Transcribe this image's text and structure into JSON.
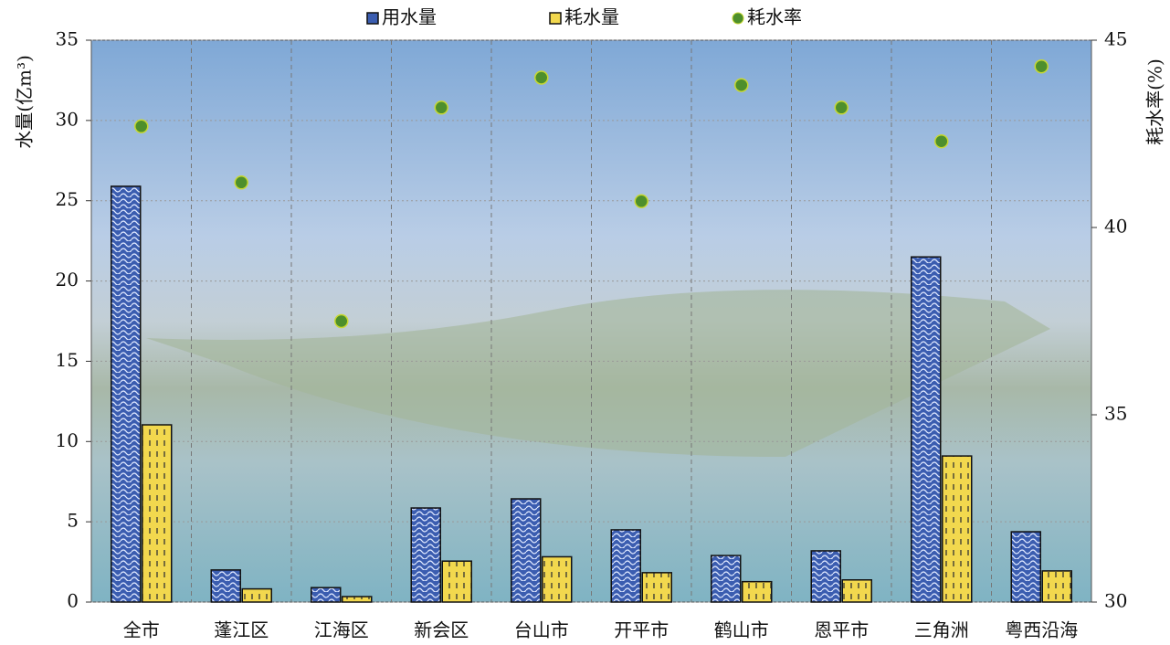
{
  "chart_data": {
    "type": "bar",
    "categories": [
      "全市",
      "蓬江区",
      "江海区",
      "新会区",
      "台山市",
      "开平市",
      "鹤山市",
      "恩平市",
      "三角洲",
      "粤西沿海"
    ],
    "series": [
      {
        "name": "用水量",
        "type": "bar",
        "color": "#3b5db0",
        "values": [
          25.9,
          2.0,
          0.9,
          5.86,
          6.43,
          4.5,
          2.9,
          3.19,
          21.5,
          4.38
        ]
      },
      {
        "name": "耗水量",
        "type": "bar",
        "color": "#f2d84e",
        "values": [
          11.04,
          0.82,
          0.34,
          2.55,
          2.82,
          1.83,
          1.27,
          1.38,
          9.1,
          1.94
        ]
      },
      {
        "name": "耗水率",
        "type": "scatter",
        "axis": "y2",
        "color": "#4e8f2c",
        "values": [
          42.7,
          41.2,
          37.5,
          43.2,
          44.0,
          40.7,
          43.8,
          43.2,
          42.3,
          44.3
        ]
      }
    ],
    "ylabel": "水量(亿m³)",
    "y2label": "耗水率(%)",
    "ylim": [
      0,
      35
    ],
    "yticks": [
      0,
      5,
      10,
      15,
      20,
      25,
      30,
      35
    ],
    "y2lim": [
      30,
      45
    ],
    "y2ticks": [
      30,
      35,
      40,
      45
    ],
    "grid": true,
    "legend": "top"
  }
}
